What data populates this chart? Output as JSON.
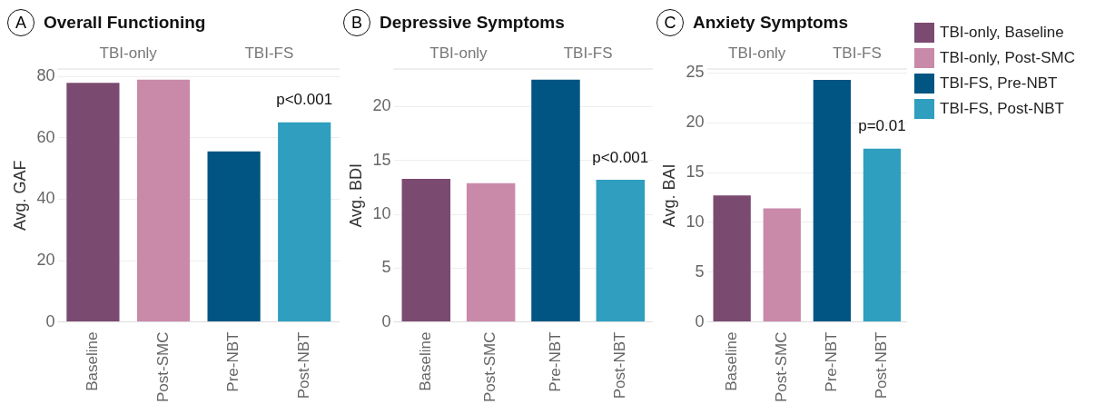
{
  "chart_data": [
    {
      "type": "bar",
      "title": "Overall Functioning",
      "ylabel": "Avg. GAF",
      "categories": [
        "Baseline",
        "Post-SMC",
        "Pre-NBT",
        "Post-NBT"
      ],
      "series": [
        {
          "color": "#7b4a70",
          "values": [
            78,
            null,
            null,
            null
          ]
        },
        {
          "color": "#c98aaa",
          "values": [
            null,
            79,
            null,
            null
          ]
        },
        {
          "color": "#005583",
          "values": [
            null,
            null,
            55.6,
            null
          ]
        },
        {
          "color": "#2f9ebf",
          "values": [
            null,
            null,
            null,
            65.1
          ]
        }
      ],
      "ylim": [
        0,
        82.5
      ],
      "yticks": [
        0,
        20,
        40,
        60,
        80
      ],
      "grid": "y",
      "legend": false,
      "annotations": [
        "A",
        "TBI-only",
        "TBI-FS",
        "p<0.001"
      ]
    },
    {
      "type": "bar",
      "title": "Depressive Symptoms",
      "ylabel": "Avg. BDI",
      "categories": [
        "Baseline",
        "Post-SMC",
        "Pre-NBT",
        "Post-NBT"
      ],
      "series": [
        {
          "color": "#7b4a70",
          "values": [
            13.3,
            null,
            null,
            null
          ]
        },
        {
          "color": "#c98aaa",
          "values": [
            null,
            12.9,
            null,
            null
          ]
        },
        {
          "color": "#005583",
          "values": [
            null,
            null,
            22.5,
            null
          ]
        },
        {
          "color": "#2f9ebf",
          "values": [
            null,
            null,
            null,
            13.2
          ]
        }
      ],
      "ylim": [
        0,
        23.5
      ],
      "yticks": [
        0,
        5,
        10,
        15,
        20
      ],
      "grid": "y",
      "legend": false,
      "annotations": [
        "B",
        "TBI-only",
        "TBI-FS",
        "p<0.001"
      ]
    },
    {
      "type": "bar",
      "title": "Anxiety Symptoms",
      "ylabel": "Avg. BAI",
      "categories": [
        "Baseline",
        "Post-SMC",
        "Pre-NBT",
        "Post-NBT"
      ],
      "series": [
        {
          "name": "TBI-only, Baseline",
          "color": "#7b4a70",
          "values": [
            12.7,
            null,
            null,
            null
          ]
        },
        {
          "name": "TBI-only, Post-SMC",
          "color": "#c98aaa",
          "values": [
            null,
            11.4,
            null,
            null
          ]
        },
        {
          "name": "TBI-FS, Pre-NBT",
          "color": "#005583",
          "values": [
            null,
            null,
            24.3,
            null
          ]
        },
        {
          "name": "TBI-FS, Post-NBT",
          "color": "#2f9ebf",
          "values": [
            null,
            null,
            null,
            17.4
          ]
        }
      ],
      "ylim": [
        0,
        25.4
      ],
      "yticks": [
        0,
        5,
        10,
        15,
        20,
        25
      ],
      "grid": "y",
      "legend": "right",
      "annotations": [
        "C",
        "TBI-only",
        "TBI-FS",
        "p=0.01"
      ]
    }
  ]
}
